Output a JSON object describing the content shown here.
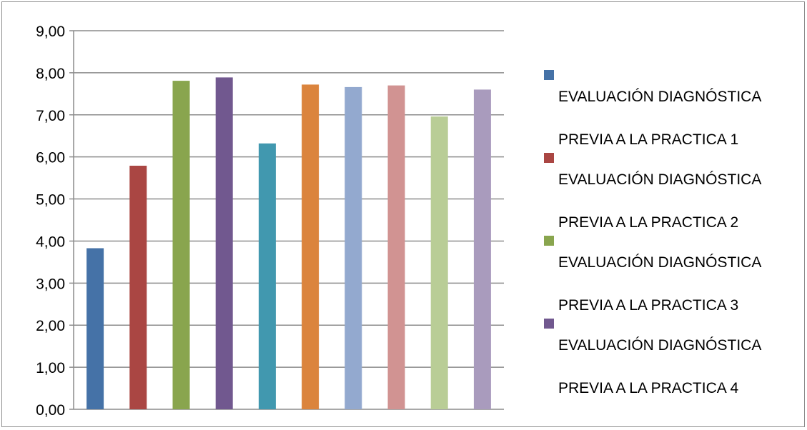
{
  "chart_data": {
    "type": "bar",
    "title": "",
    "xlabel": "",
    "ylabel": "",
    "ylim": [
      0,
      9
    ],
    "yticks": [
      "0,00",
      "1,00",
      "2,00",
      "3,00",
      "4,00",
      "5,00",
      "6,00",
      "7,00",
      "8,00",
      "9,00"
    ],
    "grid": true,
    "legend_position": "right",
    "series": [
      {
        "name": "EVALUACIÓN DIAGNÓSTICA PREVIA A LA PRACTICA 1",
        "value": 3.83,
        "color": "#4572A7"
      },
      {
        "name": "EVALUACIÓN DIAGNÓSTICA PREVIA A LA PRACTICA 2",
        "value": 5.79,
        "color": "#AA4643"
      },
      {
        "name": "EVALUACIÓN DIAGNÓSTICA PREVIA A LA PRACTICA 3",
        "value": 7.81,
        "color": "#89A54E"
      },
      {
        "name": "EVALUACIÓN DIAGNÓSTICA PREVIA A LA PRACTICA 4",
        "value": 7.89,
        "color": "#71588F"
      },
      {
        "name": "",
        "value": 6.32,
        "color": "#4198AF"
      },
      {
        "name": "",
        "value": 7.72,
        "color": "#DB843D"
      },
      {
        "name": "",
        "value": 7.66,
        "color": "#93A9CF"
      },
      {
        "name": "",
        "value": 7.7,
        "color": "#D19392"
      },
      {
        "name": "",
        "value": 6.96,
        "color": "#B9CD96"
      },
      {
        "name": "",
        "value": 7.6,
        "color": "#A99BBD"
      }
    ]
  },
  "legend": [
    {
      "line1": "EVALUACIÓN DIAGNÓSTICA",
      "line2": "PREVIA A LA PRACTICA 1",
      "color": "#4572A7"
    },
    {
      "line1": "EVALUACIÓN DIAGNÓSTICA",
      "line2": "PREVIA A LA PRACTICA 2",
      "color": "#AA4643"
    },
    {
      "line1": "EVALUACIÓN DIAGNÓSTICA",
      "line2": "PREVIA A LA PRACTICA 3",
      "color": "#89A54E"
    },
    {
      "line1": "EVALUACIÓN DIAGNÓSTICA",
      "line2": "PREVIA A LA PRACTICA 4",
      "color": "#71588F"
    }
  ]
}
